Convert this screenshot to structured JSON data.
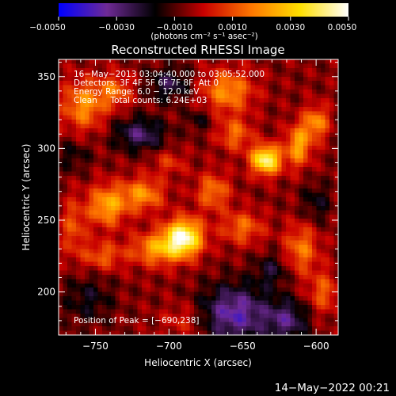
{
  "chart_data": {
    "type": "heatmap",
    "title": "Reconstructed RHESSI Image",
    "xlabel": "Heliocentric X (arcsec)",
    "ylabel": "Heliocentric Y (arcsec)",
    "xlim": [
      -775,
      -585
    ],
    "ylim": [
      170,
      362
    ],
    "xticks": [
      -750,
      -700,
      -650,
      -600
    ],
    "yticks": [
      200,
      250,
      300,
      350
    ],
    "xtick_labels": [
      "−750",
      "−700",
      "−650",
      "−600"
    ],
    "ytick_labels": [
      "200",
      "250",
      "300",
      "350"
    ],
    "colorbar": {
      "range": [
        -0.005,
        0.005
      ],
      "ticks": [
        -0.005,
        -0.003,
        -0.001,
        0.001,
        0.003,
        0.005
      ],
      "tick_labels": [
        "−0.0050",
        "−0.0030",
        "−0.0010",
        "0.0010",
        "0.0030",
        "0.0050"
      ],
      "unit_label": "(photons cm⁻² s⁻¹ asec⁻²)",
      "colors": [
        "#0000ff",
        "#6f2a96",
        "#000000",
        "#c80000",
        "#ff7800",
        "#ffe000",
        "#ffffff"
      ]
    },
    "annotations": [
      "16−May−2013 03:04:40.000 to 03:05:52.000",
      "Detectors: 3F 4F 5F 6F 7F 8F, Att 0",
      "Energy Range: 6.0 − 12.0 keV",
      "Clean     Total counts: 6.24E+03"
    ],
    "peak_label": "Position of Peak = [−690,238]",
    "sources": [
      {
        "x": -690,
        "y": 238,
        "sx": 9,
        "sy": 9,
        "amp": 0.0052
      },
      {
        "x": -634,
        "y": 292,
        "sx": 7,
        "sy": 7,
        "amp": 0.005
      },
      {
        "x": -612,
        "y": 302,
        "sx": 6,
        "sy": 10,
        "amp": 0.003
      },
      {
        "x": -600,
        "y": 318,
        "sx": 6,
        "sy": 8,
        "amp": 0.0026
      },
      {
        "x": -742,
        "y": 260,
        "sx": 9,
        "sy": 10,
        "amp": 0.003
      },
      {
        "x": -718,
        "y": 268,
        "sx": 10,
        "sy": 8,
        "amp": 0.0026
      },
      {
        "x": -758,
        "y": 330,
        "sx": 10,
        "sy": 12,
        "amp": 0.0026
      },
      {
        "x": -737,
        "y": 340,
        "sx": 8,
        "sy": 8,
        "amp": 0.002
      },
      {
        "x": -660,
        "y": 340,
        "sx": 12,
        "sy": 10,
        "amp": 0.0026
      },
      {
        "x": -655,
        "y": 310,
        "sx": 8,
        "sy": 8,
        "amp": 0.002
      },
      {
        "x": -670,
        "y": 270,
        "sx": 8,
        "sy": 9,
        "amp": 0.0022
      },
      {
        "x": -708,
        "y": 230,
        "sx": 12,
        "sy": 8,
        "amp": 0.0028
      },
      {
        "x": -650,
        "y": 245,
        "sx": 10,
        "sy": 8,
        "amp": 0.002
      },
      {
        "x": -610,
        "y": 230,
        "sx": 8,
        "sy": 12,
        "amp": 0.0022
      },
      {
        "x": -595,
        "y": 200,
        "sx": 7,
        "sy": 10,
        "amp": 0.0018
      },
      {
        "x": -745,
        "y": 225,
        "sx": 10,
        "sy": 7,
        "amp": 0.0018
      },
      {
        "x": -765,
        "y": 245,
        "sx": 6,
        "sy": 14,
        "amp": 0.0016
      },
      {
        "x": -700,
        "y": 290,
        "sx": 8,
        "sy": 6,
        "amp": 0.0012
      },
      {
        "x": -690,
        "y": 180,
        "sx": 10,
        "sy": 8,
        "amp": 0.001
      },
      {
        "x": -720,
        "y": 310,
        "sx": 12,
        "sy": 8,
        "amp": -0.0022
      },
      {
        "x": -700,
        "y": 345,
        "sx": 10,
        "sy": 8,
        "amp": -0.0018
      },
      {
        "x": -655,
        "y": 185,
        "sx": 16,
        "sy": 14,
        "amp": -0.003
      },
      {
        "x": -620,
        "y": 180,
        "sx": 10,
        "sy": 10,
        "amp": -0.0022
      },
      {
        "x": -755,
        "y": 195,
        "sx": 12,
        "sy": 12,
        "amp": -0.0012
      },
      {
        "x": -630,
        "y": 215,
        "sx": 8,
        "sy": 8,
        "amp": -0.0014
      },
      {
        "x": -600,
        "y": 262,
        "sx": 7,
        "sy": 10,
        "amp": -0.0012
      },
      {
        "x": -765,
        "y": 295,
        "sx": 8,
        "sy": 8,
        "amp": -0.001
      },
      {
        "x": -680,
        "y": 320,
        "sx": 6,
        "sy": 6,
        "amp": -0.001
      }
    ]
  },
  "footer": {
    "date": "14−May−2022 00:21"
  }
}
